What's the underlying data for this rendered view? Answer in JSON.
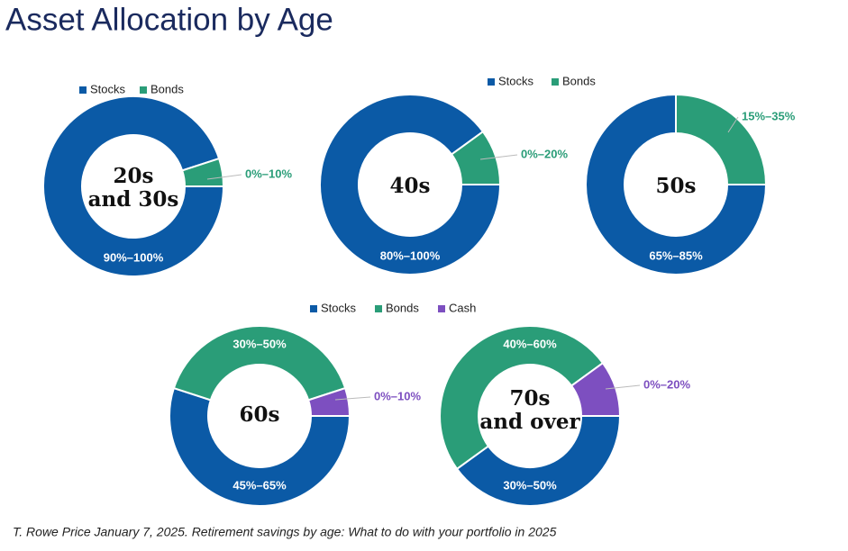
{
  "title": "Asset Allocation by Age",
  "source": "T. Rowe Price January 7, 2025. Retirement savings by age: What to do with your portfolio in 2025",
  "chart_data": [
    {
      "type": "pie",
      "center_label": [
        "20s",
        "and 30s"
      ],
      "categories": [
        "Stocks",
        "Bonds"
      ],
      "colors": [
        "#0b5aa6",
        "#2a9d78"
      ],
      "values": [
        95,
        5
      ],
      "value_labels": [
        "90%–100%",
        "0%–10%"
      ]
    },
    {
      "type": "pie",
      "center_label": [
        "40s"
      ],
      "categories": [
        "Stocks",
        "Bonds"
      ],
      "colors": [
        "#0b5aa6",
        "#2a9d78"
      ],
      "values": [
        90,
        10
      ],
      "value_labels": [
        "80%–100%",
        "0%–20%"
      ]
    },
    {
      "type": "pie",
      "center_label": [
        "50s"
      ],
      "categories": [
        "Stocks",
        "Bonds"
      ],
      "colors": [
        "#0b5aa6",
        "#2a9d78"
      ],
      "values": [
        75,
        25
      ],
      "value_labels": [
        "65%–85%",
        "15%–35%"
      ]
    },
    {
      "type": "pie",
      "center_label": [
        "60s"
      ],
      "categories": [
        "Stocks",
        "Bonds",
        "Cash"
      ],
      "colors": [
        "#0b5aa6",
        "#2a9d78",
        "#7d4fc0"
      ],
      "values": [
        55,
        40,
        5
      ],
      "value_labels": [
        "45%–65%",
        "30%–50%",
        "0%–10%"
      ]
    },
    {
      "type": "pie",
      "center_label": [
        "70s",
        "and over"
      ],
      "categories": [
        "Stocks",
        "Bonds",
        "Cash"
      ],
      "colors": [
        "#0b5aa6",
        "#2a9d78",
        "#7d4fc0"
      ],
      "values": [
        40,
        50,
        10
      ],
      "value_labels": [
        "30%–50%",
        "40%–60%",
        "0%–20%"
      ]
    }
  ]
}
